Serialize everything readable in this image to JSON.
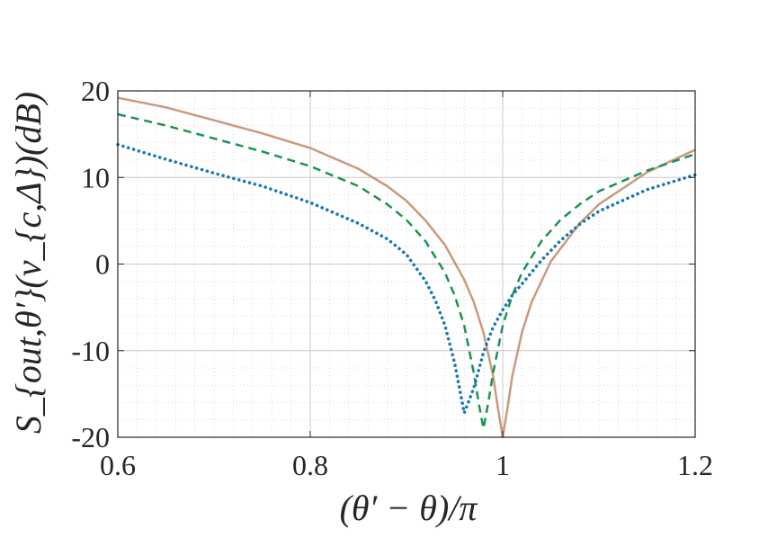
{
  "chart_data": {
    "type": "line",
    "title": "",
    "xlabel": "(θ′ − θ)/π",
    "ylabel": "S_{out,θ′}(ν_{c,Δ})(dB)",
    "xlim": [
      0.6,
      1.2
    ],
    "ylim": [
      -20,
      20
    ],
    "xticks": [
      0.6,
      0.8,
      1,
      1.2
    ],
    "xtick_labels": [
      "0.6",
      "0.8",
      "1",
      "1.2"
    ],
    "yticks": [
      20,
      10,
      0,
      -10,
      -20
    ],
    "ytick_labels": [
      "20",
      "10",
      "0",
      "-10",
      "-20"
    ],
    "grid": true,
    "minor_grid": true,
    "series": [
      {
        "color": "#c89a7e",
        "style": "solid",
        "x": [
          0.6,
          0.65,
          0.7,
          0.75,
          0.8,
          0.85,
          0.88,
          0.9,
          0.92,
          0.94,
          0.96,
          0.97,
          0.98,
          0.99,
          0.995,
          1.0,
          1.005,
          1.01,
          1.02,
          1.03,
          1.05,
          1.08,
          1.1,
          1.15,
          1.2
        ],
        "y": [
          19.2,
          18.1,
          16.6,
          15.1,
          13.4,
          11.0,
          9.0,
          7.3,
          5.0,
          2.2,
          -1.8,
          -4.4,
          -7.9,
          -12.9,
          -16.6,
          -20.0,
          -16.6,
          -12.9,
          -7.9,
          -4.4,
          0.3,
          4.7,
          6.9,
          10.6,
          13.2
        ]
      },
      {
        "color": "#1a9450",
        "style": "dashed",
        "x": [
          0.6,
          0.65,
          0.7,
          0.75,
          0.8,
          0.85,
          0.88,
          0.9,
          0.92,
          0.94,
          0.95,
          0.96,
          0.97,
          0.975,
          0.98,
          0.985,
          0.99,
          1.0,
          1.01,
          1.02,
          1.04,
          1.06,
          1.08,
          1.1,
          1.15,
          1.2
        ],
        "y": [
          17.3,
          16.0,
          14.5,
          13.0,
          11.3,
          9.0,
          6.9,
          5.1,
          2.6,
          -1.0,
          -3.6,
          -7.1,
          -12.6,
          -16.0,
          -19.0,
          -16.0,
          -12.6,
          -7.1,
          -3.6,
          -1.0,
          2.6,
          5.1,
          6.9,
          8.4,
          10.8,
          12.7
        ]
      },
      {
        "color": "#1a78b4",
        "style": "dotted",
        "x": [
          0.6,
          0.65,
          0.7,
          0.75,
          0.8,
          0.85,
          0.88,
          0.9,
          0.92,
          0.93,
          0.94,
          0.95,
          0.96,
          0.97,
          0.98,
          0.99,
          1.0,
          1.01,
          1.02,
          1.04,
          1.06,
          1.08,
          1.1,
          1.15,
          1.2
        ],
        "y": [
          13.8,
          12.1,
          10.5,
          9.0,
          7.1,
          4.7,
          2.9,
          1.1,
          -2.0,
          -4.2,
          -7.1,
          -11.4,
          -17.2,
          -14.3,
          -10.2,
          -7.3,
          -5.3,
          -3.6,
          -2.3,
          0.4,
          2.7,
          4.6,
          6.1,
          8.6,
          10.3
        ]
      }
    ]
  }
}
